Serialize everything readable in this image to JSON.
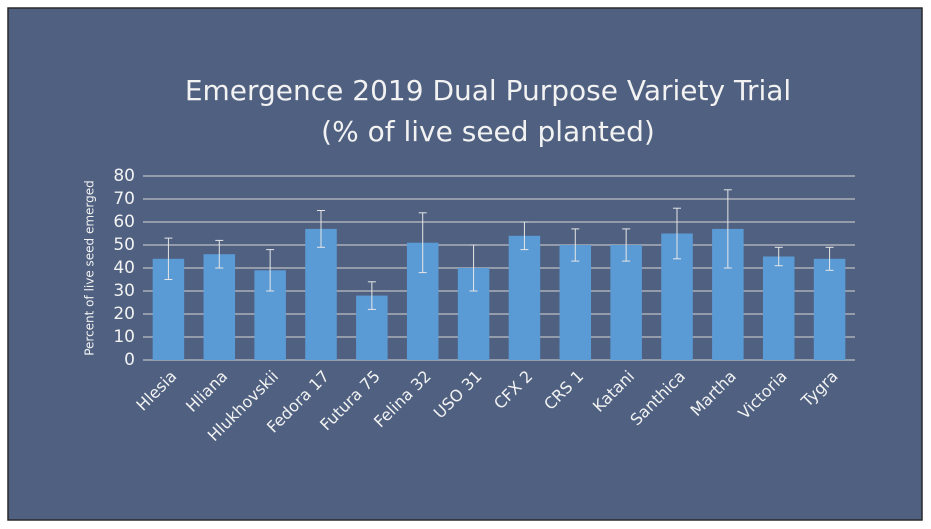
{
  "chart_data": {
    "type": "bar",
    "title": [
      "Emergence 2019 Dual Purpose Variety Trial",
      "(% of live seed planted)"
    ],
    "y_label": "Percent of live seed emerged",
    "categories": [
      "Hlesia",
      "Hliana",
      "Hlukhovskii",
      "Fedora 17",
      "Futura 75",
      "Felina 32",
      "USO 31",
      "CFX 2",
      "CRS 1",
      "Katani",
      "Santhica",
      "Martha",
      "Victoria",
      "Tygra"
    ],
    "values": [
      44,
      46,
      39,
      57,
      28,
      51,
      40,
      54,
      50,
      50,
      55,
      57,
      45,
      44
    ],
    "errors": [
      9,
      6,
      9,
      8,
      6,
      13,
      10,
      6,
      7,
      7,
      11,
      17,
      4,
      5
    ],
    "color": "#5b9bd5",
    "ylim": [
      0,
      80
    ],
    "yticks": [
      0,
      10,
      20,
      30,
      40,
      50,
      60,
      70,
      80
    ],
    "grid": true
  }
}
